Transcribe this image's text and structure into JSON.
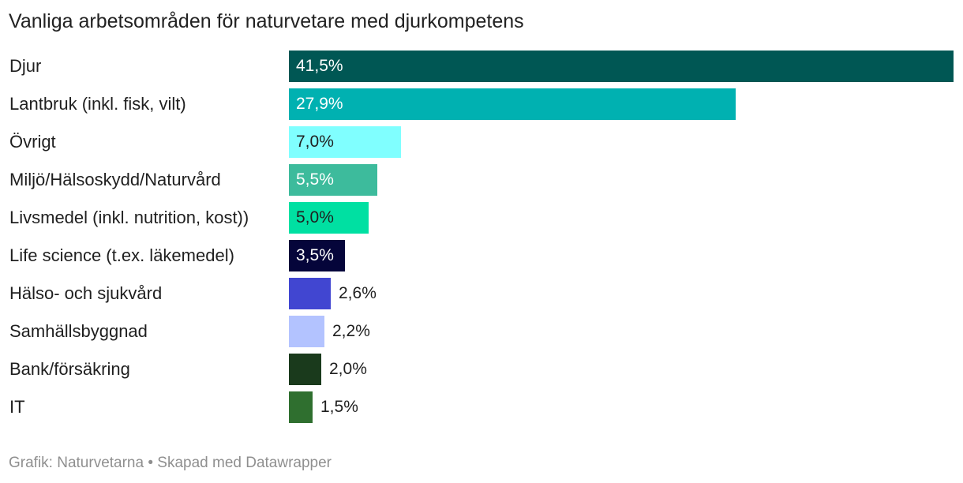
{
  "chart_data": {
    "type": "bar",
    "orientation": "horizontal",
    "title": "Vanliga arbetsområden för naturvetare med djurkompetens",
    "xlabel": "",
    "ylabel": "",
    "xlim": [
      0,
      41.5
    ],
    "categories": [
      "Djur",
      "Lantbruk (inkl. fisk, vilt)",
      "Övrigt",
      "Miljö/Hälsoskydd/Naturvård",
      "Livsmedel (inkl. nutrition, kost))",
      "Life science (t.ex. läkemedel)",
      "Hälso- och sjukvård",
      "Samhällsbyggnad",
      "Bank/försäkring",
      "IT"
    ],
    "values": [
      41.5,
      27.9,
      7.0,
      5.5,
      5.0,
      3.5,
      2.6,
      2.2,
      2.0,
      1.5
    ],
    "value_labels": [
      "41,5%",
      "27,9%",
      "7,0%",
      "5,5%",
      "5,0%",
      "3,5%",
      "2,6%",
      "2,2%",
      "2,0%",
      "1,5%"
    ],
    "colors": [
      "#005754",
      "#00b1b1",
      "#80ffff",
      "#3dbb9c",
      "#00e0a2",
      "#05053a",
      "#4146d1",
      "#b3c3ff",
      "#1a3a1c",
      "#2f6f2f"
    ],
    "label_colors": [
      "#ffffff",
      "#ffffff",
      "#1f1f1f",
      "#ffffff",
      "#1f1f1f",
      "#ffffff",
      "#1f1f1f",
      "#1f1f1f",
      "#1f1f1f",
      "#1f1f1f"
    ],
    "label_inside": [
      true,
      true,
      true,
      true,
      true,
      true,
      false,
      false,
      false,
      false
    ],
    "footer": "Grafik: Naturvetarna • Skapad med Datawrapper"
  }
}
